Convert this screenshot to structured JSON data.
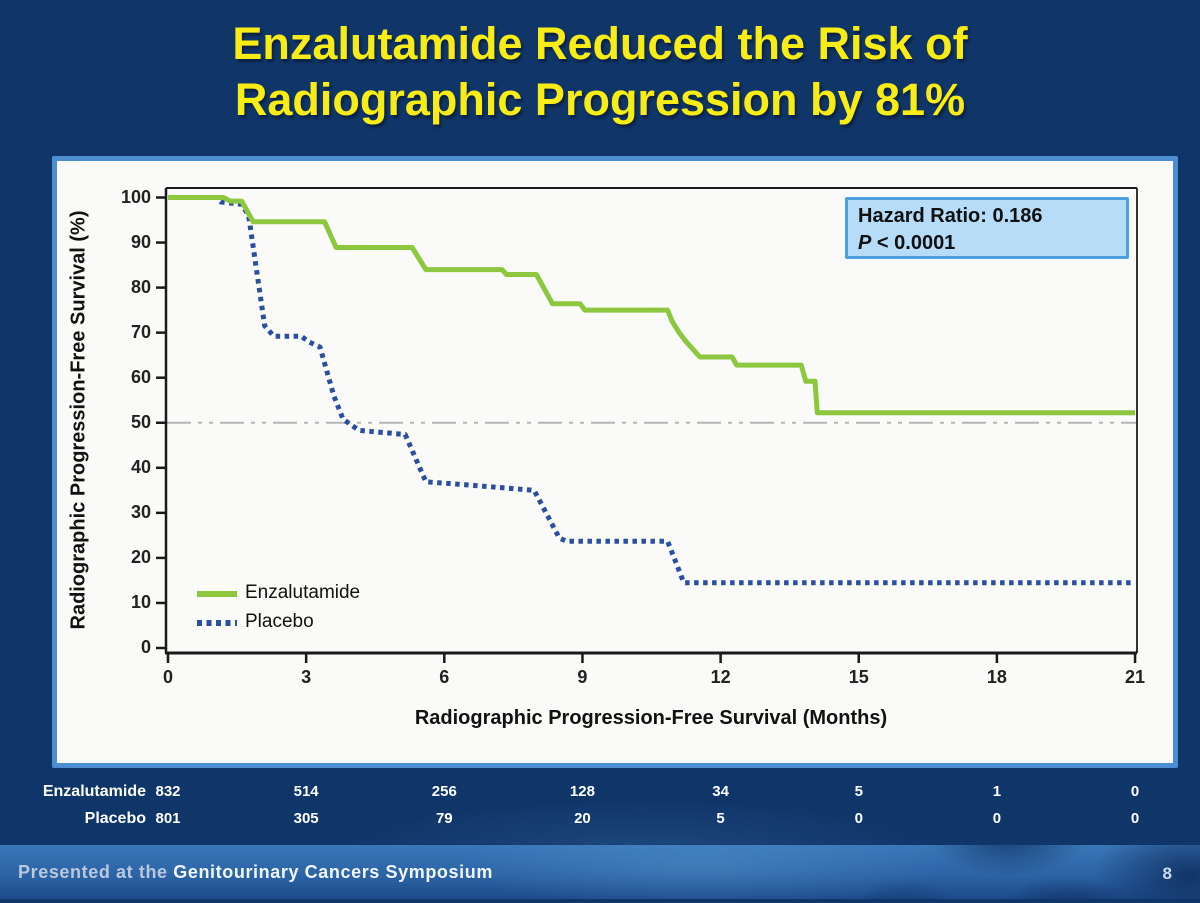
{
  "slide": {
    "title": "Enzalutamide Reduced the Risk of\nRadiographic Progression by 81%",
    "footer_prefix": "Presented at the ",
    "footer_bold": "Genitourinary Cancers Symposium",
    "page_number": "8"
  },
  "annotation": {
    "line1": "Hazard Ratio: 0.186",
    "p_label": "P",
    "p_rest": " < 0.0001"
  },
  "colors": {
    "background": "#103569",
    "title": "#f7ec13",
    "panel_border": "#4d8ed2",
    "enzalutamide": "#8dc63f",
    "placebo": "#2b4e9e",
    "reference_line": "#b5b5b5",
    "annotation_bg": "#b6dcf8",
    "annotation_border": "#4f9ee0"
  },
  "chart_data": {
    "type": "line",
    "subtype": "kaplan-meier-step",
    "title": "",
    "xlabel": "Radiographic Progression-Free Survival (Months)",
    "ylabel": "Radiographic Progression-Free Survival (%)",
    "xlim": [
      0,
      21
    ],
    "ylim": [
      0,
      100
    ],
    "xticks": [
      0,
      3,
      6,
      9,
      12,
      15,
      18,
      21
    ],
    "yticks": [
      100,
      90,
      80,
      70,
      60,
      50,
      40,
      30,
      20,
      10,
      0
    ],
    "grid": false,
    "reference_line_y": 50,
    "legend_position": "lower-left",
    "series": [
      {
        "name": "Enzalutamide",
        "style": "solid",
        "color": "#8dc63f",
        "points": [
          [
            0,
            100
          ],
          [
            1.2,
            100
          ],
          [
            1.35,
            99.2
          ],
          [
            1.6,
            99.2
          ],
          [
            1.85,
            94.6
          ],
          [
            3.4,
            94.6
          ],
          [
            3.65,
            88.9
          ],
          [
            5.3,
            88.9
          ],
          [
            5.6,
            84
          ],
          [
            7.25,
            84
          ],
          [
            7.35,
            82.9
          ],
          [
            8.0,
            82.9
          ],
          [
            8.35,
            76.4
          ],
          [
            8.95,
            76.4
          ],
          [
            9.05,
            75
          ],
          [
            10.85,
            75
          ],
          [
            10.95,
            72.5
          ],
          [
            11.1,
            70
          ],
          [
            11.25,
            68
          ],
          [
            11.4,
            66.3
          ],
          [
            11.55,
            64.6
          ],
          [
            12.25,
            64.6
          ],
          [
            12.35,
            62.8
          ],
          [
            13.75,
            62.8
          ],
          [
            13.85,
            59.2
          ],
          [
            14.05,
            59.2
          ],
          [
            14.1,
            52.2
          ],
          [
            21,
            52.2
          ]
        ]
      },
      {
        "name": "Placebo",
        "style": "dotted",
        "color": "#2b4e9e",
        "points": [
          [
            0,
            100
          ],
          [
            1.05,
            100
          ],
          [
            1.15,
            99
          ],
          [
            1.6,
            98.5
          ],
          [
            1.75,
            96
          ],
          [
            2.1,
            71.5
          ],
          [
            2.3,
            69.2
          ],
          [
            2.9,
            69.2
          ],
          [
            3.05,
            68
          ],
          [
            3.3,
            66.8
          ],
          [
            3.6,
            56
          ],
          [
            3.8,
            50.8
          ],
          [
            4.15,
            48.3
          ],
          [
            5.15,
            47.4
          ],
          [
            5.6,
            36.9
          ],
          [
            6.5,
            36.2
          ],
          [
            7.95,
            35
          ],
          [
            8.5,
            24.4
          ],
          [
            8.65,
            23.7
          ],
          [
            10.85,
            23.7
          ],
          [
            11.2,
            14.5
          ],
          [
            21,
            14.5
          ]
        ]
      }
    ],
    "at_risk": {
      "times": [
        0,
        3,
        6,
        9,
        12,
        15,
        18,
        21
      ],
      "rows": [
        {
          "name": "Enzalutamide",
          "counts": [
            832,
            514,
            256,
            128,
            34,
            5,
            1,
            0
          ]
        },
        {
          "name": "Placebo",
          "counts": [
            801,
            305,
            79,
            20,
            5,
            0,
            0,
            0
          ]
        }
      ]
    }
  }
}
